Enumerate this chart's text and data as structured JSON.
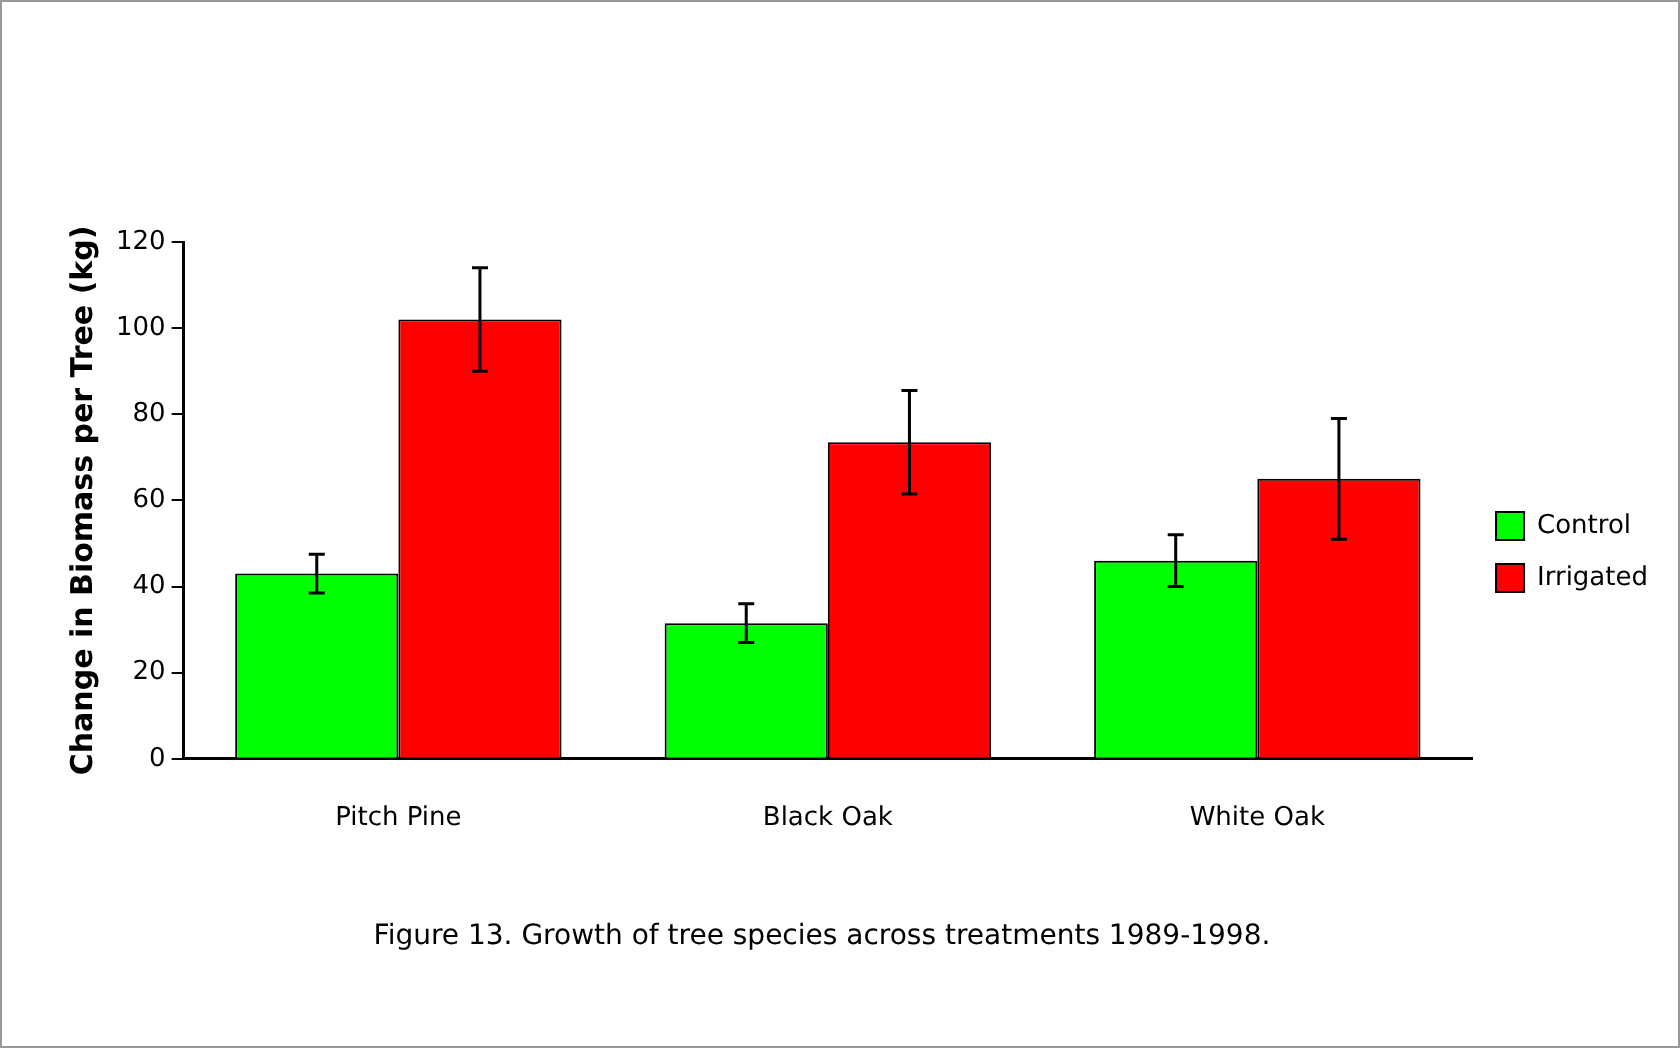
{
  "chart_data": {
    "type": "bar",
    "title": "Figure 13.  Growth of tree species across treatments 1989-1998.",
    "ylabel": "Change in Biomass per Tree (kg)",
    "categories": [
      "Pitch Pine",
      "Black Oak",
      "White Oak"
    ],
    "series": [
      {
        "name": "Control",
        "color": "#00ff00",
        "values": [
          43,
          31.5,
          46
        ],
        "errors": [
          4.5,
          4.5,
          6
        ]
      },
      {
        "name": "Irrigated",
        "color": "#ff0000",
        "values": [
          102,
          73.5,
          65
        ],
        "errors": [
          12,
          12,
          14
        ]
      }
    ],
    "ylim": [
      0,
      120
    ],
    "yticks": [
      0,
      20,
      40,
      60,
      80,
      100,
      120
    ],
    "legend": "right"
  }
}
